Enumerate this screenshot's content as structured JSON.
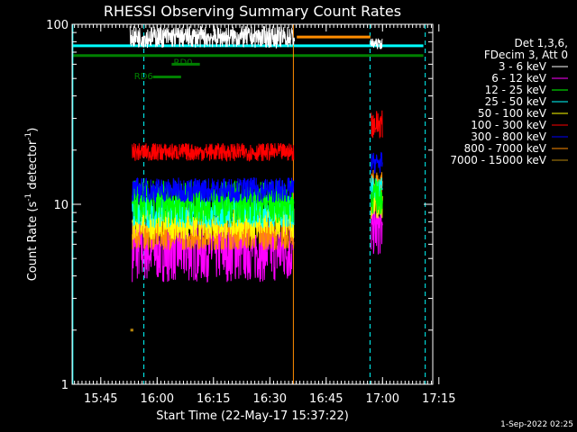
{
  "chart_data": {
    "type": "line",
    "title": "RHESSI Observing Summary Count Rates",
    "xlabel": "Start Time (22-May-17 15:37:22)",
    "ylabel_main": "Count Rate (s",
    "ylabel_sup1": "-1",
    "ylabel_mid": " detector",
    "ylabel_sup2": "-1",
    "ylabel_end": ")",
    "yscale": "log",
    "ylim": [
      1,
      100
    ],
    "xlim_minutes": [
      0,
      96
    ],
    "xticks": [
      {
        "t": 7.63,
        "label": "15:45"
      },
      {
        "t": 22.63,
        "label": "16:00"
      },
      {
        "t": 37.63,
        "label": "16:15"
      },
      {
        "t": 52.63,
        "label": "16:30"
      },
      {
        "t": 67.63,
        "label": "16:45"
      },
      {
        "t": 82.63,
        "label": "17:00"
      },
      {
        "t": 97.63,
        "label": "17:15"
      }
    ],
    "yticks": [
      {
        "v": 1,
        "label": "1"
      },
      {
        "v": 10,
        "label": "10"
      },
      {
        "v": 100,
        "label": "100"
      }
    ],
    "legend": {
      "header1": "Det 1,3,6,",
      "header2": "FDecim 3, Att 0",
      "position": "right"
    },
    "series": [
      {
        "name": "3 - 6 keV",
        "color": "#ffffff",
        "segments": [
          {
            "start": 15.4,
            "end": 59.2,
            "base": 85,
            "noise": 0.06
          },
          {
            "start": 79.4,
            "end": 82.6,
            "base": 78,
            "noise": 0.03
          }
        ]
      },
      {
        "name": "6 - 12 keV",
        "color": "#ff00ff",
        "segments": [
          {
            "start": 16.0,
            "end": 59.0,
            "base": 5.6,
            "noise": 0.18
          },
          {
            "start": 79.6,
            "end": 82.6,
            "base": 7.3,
            "noise": 0.15
          }
        ]
      },
      {
        "name": "12 - 25 keV",
        "color": "#00ff00",
        "segments": [
          {
            "start": 16.0,
            "end": 59.0,
            "base": 10.3,
            "noise": 0.12
          },
          {
            "start": 79.6,
            "end": 82.6,
            "base": 11.0,
            "noise": 0.1
          }
        ]
      },
      {
        "name": "25 - 50 keV",
        "color": "#00ffff",
        "segments": [
          {
            "start": 16.0,
            "end": 59.0,
            "base": 9.3,
            "noise": 0.1
          },
          {
            "start": 79.6,
            "end": 82.6,
            "base": 12.0,
            "noise": 0.08
          }
        ]
      },
      {
        "name": "50 - 100 keV",
        "color": "#ffff00",
        "segments": [
          {
            "start": 16.0,
            "end": 59.0,
            "base": 8.0,
            "noise": 0.1
          },
          {
            "start": 79.6,
            "end": 82.6,
            "base": 10.0,
            "noise": 0.08
          }
        ]
      },
      {
        "name": "100 - 300 keV",
        "color": "#ff0000",
        "segments": [
          {
            "start": 16.0,
            "end": 59.0,
            "base": 19.5,
            "noise": 0.05
          },
          {
            "start": 79.6,
            "end": 82.6,
            "base": 28.0,
            "noise": 0.08
          }
        ]
      },
      {
        "name": "300 - 800 keV",
        "color": "#0000ff",
        "segments": [
          {
            "start": 16.0,
            "end": 59.0,
            "base": 12.0,
            "noise": 0.07
          },
          {
            "start": 79.6,
            "end": 82.6,
            "base": 17.0,
            "noise": 0.06
          }
        ]
      },
      {
        "name": "800 - 7000 keV",
        "color": "#ff8c00",
        "segments": [
          {
            "start": 16.0,
            "end": 59.0,
            "base": 7.0,
            "noise": 0.1
          },
          {
            "start": 59.8,
            "end": 79.4,
            "base": 85,
            "noise": 0
          },
          {
            "start": 79.6,
            "end": 82.6,
            "base": 13.0,
            "noise": 0.08
          }
        ]
      },
      {
        "name": "7000 - 15000 keV",
        "color": "#b8860b",
        "segments": [
          {
            "start": 15.5,
            "end": 16.3,
            "base": 2.0,
            "noise": 0
          },
          {
            "start": 59.9,
            "end": 60.1,
            "base": 1.0,
            "noise": 0
          }
        ]
      }
    ],
    "flag_lines": [
      {
        "color": "#00ffff",
        "y": 76,
        "start": 0.2,
        "end": 93.5
      },
      {
        "color": "#008000",
        "y": 67,
        "start": 0.2,
        "end": 93.5
      }
    ],
    "flag_labels": [
      {
        "label": "RD0",
        "color": "#008000",
        "t": 27.0,
        "y": 62,
        "bar_start": 26.5,
        "bar_end": 34.0,
        "bar_y": 60
      },
      {
        "label": "RD6",
        "color": "#008000",
        "t": 16.5,
        "y": 52,
        "bar_start": 21.5,
        "bar_end": 29.0,
        "bar_y": 51
      }
    ],
    "vlines_dashed": [
      {
        "t": 19.1,
        "color": "#00ffff"
      },
      {
        "t": 79.3,
        "color": "#00ffff"
      },
      {
        "t": 94.0,
        "color": "#00ffff"
      }
    ],
    "vlines_solid": [
      {
        "t": 0.2,
        "color": "#00ffff"
      },
      {
        "t": 58.9,
        "color": "#ff8c00"
      }
    ],
    "footer_date": "1-Sep-2022 02:25"
  }
}
